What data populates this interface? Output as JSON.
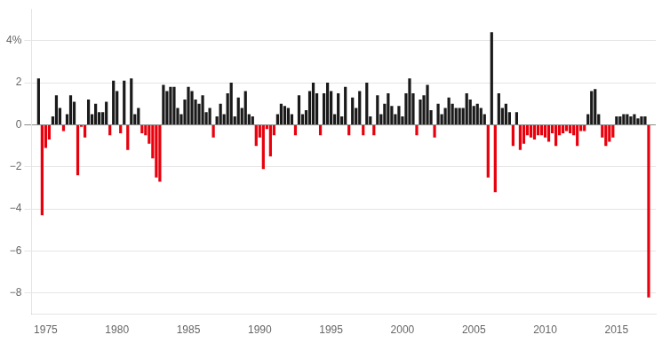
{
  "chart_data": {
    "type": "bar",
    "x": [
      1974.5,
      1974.75,
      1975,
      1975.25,
      1975.5,
      1975.75,
      1976,
      1976.25,
      1976.5,
      1976.75,
      1977,
      1977.25,
      1977.5,
      1977.75,
      1978,
      1978.25,
      1978.5,
      1978.75,
      1979,
      1979.25,
      1979.5,
      1979.75,
      1980,
      1980.25,
      1980.5,
      1980.75,
      1981,
      1981.25,
      1981.5,
      1981.75,
      1982,
      1982.25,
      1982.5,
      1982.75,
      1983,
      1983.25,
      1983.5,
      1983.75,
      1984,
      1984.25,
      1984.5,
      1984.75,
      1985,
      1985.25,
      1985.5,
      1985.75,
      1986,
      1986.25,
      1986.5,
      1986.75,
      1987,
      1987.25,
      1987.5,
      1987.75,
      1988,
      1988.25,
      1988.5,
      1988.75,
      1989,
      1989.25,
      1989.5,
      1989.75,
      1990,
      1990.25,
      1990.5,
      1990.75,
      1991,
      1991.25,
      1991.5,
      1991.75,
      1992,
      1992.25,
      1992.5,
      1992.75,
      1993,
      1993.25,
      1993.5,
      1993.75,
      1994,
      1994.25,
      1994.5,
      1994.75,
      1995,
      1995.25,
      1995.5,
      1995.75,
      1996,
      1996.25,
      1996.5,
      1996.75,
      1997,
      1997.25,
      1997.5,
      1997.75,
      1998,
      1998.25,
      1998.5,
      1998.75,
      1999,
      1999.25,
      1999.5,
      1999.75,
      2000,
      2000.25,
      2000.5,
      2000.75,
      2001,
      2001.25,
      2001.5,
      2001.75,
      2002,
      2002.25,
      2002.5,
      2002.75,
      2003,
      2003.25,
      2003.5,
      2003.75,
      2004,
      2004.25,
      2004.5,
      2004.75,
      2005,
      2005.25,
      2005.5,
      2005.75,
      2006,
      2006.25,
      2006.5,
      2006.75,
      2007,
      2007.25,
      2007.5,
      2007.75,
      2008,
      2008.25,
      2008.5,
      2008.75,
      2009,
      2009.25,
      2009.5,
      2009.75,
      2010,
      2010.25,
      2010.5,
      2010.75,
      2011,
      2011.25,
      2011.5,
      2011.75,
      2012,
      2012.25,
      2012.5,
      2012.75,
      2013,
      2013.25,
      2013.5,
      2013.75,
      2014,
      2014.25,
      2014.5,
      2014.75,
      2015,
      2015.25,
      2015.5,
      2015.75,
      2016,
      2016.25,
      2016.5,
      2016.75,
      2017,
      2017.25
    ],
    "values": [
      2.2,
      -4.3,
      -1.1,
      -0.7,
      0.4,
      1.4,
      0.8,
      -0.3,
      0.5,
      1.4,
      1.1,
      -2.4,
      -0.1,
      -0.6,
      1.2,
      0.5,
      1.0,
      0.6,
      0.6,
      1.1,
      -0.5,
      2.1,
      1.6,
      -0.4,
      2.1,
      -1.2,
      2.2,
      0.5,
      0.8,
      -0.4,
      -0.5,
      -0.9,
      -1.6,
      -2.5,
      -2.7,
      1.9,
      1.6,
      1.8,
      1.8,
      0.8,
      0.5,
      1.2,
      1.8,
      1.6,
      1.2,
      1.0,
      1.4,
      0.6,
      0.8,
      -0.6,
      0.4,
      1.0,
      0.5,
      1.5,
      2.0,
      0.4,
      1.3,
      0.8,
      1.6,
      0.5,
      0.4,
      -1.0,
      -0.6,
      -2.1,
      -0.2,
      -1.5,
      -0.5,
      0.5,
      1.0,
      0.9,
      0.8,
      0.5,
      -0.5,
      1.4,
      0.5,
      0.7,
      1.6,
      2.0,
      1.5,
      -0.5,
      1.5,
      2.0,
      1.6,
      0.5,
      1.5,
      0.4,
      1.8,
      -0.5,
      1.3,
      0.8,
      1.6,
      -0.5,
      2.0,
      0.4,
      -0.5,
      1.4,
      0.5,
      1.0,
      1.5,
      0.9,
      0.5,
      0.9,
      0.4,
      1.5,
      2.2,
      1.5,
      -0.5,
      1.2,
      1.4,
      1.9,
      0.7,
      -0.6,
      1.0,
      0.5,
      0.8,
      1.3,
      1.0,
      0.8,
      0.8,
      0.8,
      1.5,
      1.2,
      0.9,
      1.0,
      0.8,
      0.5,
      -2.5,
      4.4,
      -3.2,
      1.5,
      0.8,
      1.0,
      0.6,
      -1.0,
      0.6,
      -1.2,
      -0.9,
      -0.5,
      -0.6,
      -0.7,
      -0.5,
      -0.5,
      -0.6,
      -0.8,
      -0.4,
      -1.0,
      -0.5,
      -0.4,
      -0.3,
      -0.4,
      -0.5,
      -1.0,
      -0.3,
      -0.3,
      0.5,
      1.6,
      1.7,
      0.5,
      -0.6,
      -1.0,
      -0.8,
      -0.6,
      0.4,
      0.4,
      0.5,
      0.5,
      0.4,
      0.5,
      0.3,
      0.4,
      0.4,
      -8.2
    ],
    "colors": [
      "#1a1a1a",
      "#e8000d",
      "#e8000d",
      "#e8000d",
      "#1a1a1a",
      "#1a1a1a",
      "#1a1a1a",
      "#e8000d",
      "#1a1a1a",
      "#1a1a1a",
      "#1a1a1a",
      "#e8000d",
      "#e8000d",
      "#e8000d",
      "#1a1a1a",
      "#1a1a1a",
      "#1a1a1a",
      "#1a1a1a",
      "#1a1a1a",
      "#1a1a1a",
      "#e8000d",
      "#1a1a1a",
      "#1a1a1a",
      "#e8000d",
      "#1a1a1a",
      "#e8000d",
      "#1a1a1a",
      "#1a1a1a",
      "#1a1a1a",
      "#e8000d",
      "#e8000d",
      "#e8000d",
      "#e8000d",
      "#e8000d",
      "#e8000d",
      "#1a1a1a",
      "#1a1a1a",
      "#1a1a1a",
      "#1a1a1a",
      "#1a1a1a",
      "#1a1a1a",
      "#1a1a1a",
      "#1a1a1a",
      "#1a1a1a",
      "#1a1a1a",
      "#1a1a1a",
      "#1a1a1a",
      "#1a1a1a",
      "#1a1a1a",
      "#e8000d",
      "#1a1a1a",
      "#1a1a1a",
      "#1a1a1a",
      "#1a1a1a",
      "#1a1a1a",
      "#1a1a1a",
      "#1a1a1a",
      "#1a1a1a",
      "#1a1a1a",
      "#1a1a1a",
      "#1a1a1a",
      "#e8000d",
      "#e8000d",
      "#e8000d",
      "#e8000d",
      "#e8000d",
      "#e8000d",
      "#1a1a1a",
      "#1a1a1a",
      "#1a1a1a",
      "#1a1a1a",
      "#1a1a1a",
      "#e8000d",
      "#1a1a1a",
      "#1a1a1a",
      "#1a1a1a",
      "#1a1a1a",
      "#1a1a1a",
      "#1a1a1a",
      "#e8000d",
      "#1a1a1a",
      "#1a1a1a",
      "#1a1a1a",
      "#1a1a1a",
      "#1a1a1a",
      "#1a1a1a",
      "#1a1a1a",
      "#e8000d",
      "#1a1a1a",
      "#1a1a1a",
      "#1a1a1a",
      "#e8000d",
      "#1a1a1a",
      "#1a1a1a",
      "#e8000d",
      "#1a1a1a",
      "#1a1a1a",
      "#1a1a1a",
      "#1a1a1a",
      "#1a1a1a",
      "#1a1a1a",
      "#1a1a1a",
      "#1a1a1a",
      "#1a1a1a",
      "#1a1a1a",
      "#1a1a1a",
      "#e8000d",
      "#1a1a1a",
      "#1a1a1a",
      "#1a1a1a",
      "#1a1a1a",
      "#e8000d",
      "#1a1a1a",
      "#1a1a1a",
      "#1a1a1a",
      "#1a1a1a",
      "#1a1a1a",
      "#1a1a1a",
      "#1a1a1a",
      "#1a1a1a",
      "#1a1a1a",
      "#1a1a1a",
      "#1a1a1a",
      "#1a1a1a",
      "#1a1a1a",
      "#1a1a1a",
      "#e8000d",
      "#1a1a1a",
      "#e8000d",
      "#1a1a1a",
      "#1a1a1a",
      "#1a1a1a",
      "#1a1a1a",
      "#e8000d",
      "#1a1a1a",
      "#e8000d",
      "#e8000d",
      "#e8000d",
      "#e8000d",
      "#e8000d",
      "#e8000d",
      "#e8000d",
      "#e8000d",
      "#e8000d",
      "#e8000d",
      "#e8000d",
      "#e8000d",
      "#e8000d",
      "#e8000d",
      "#e8000d",
      "#e8000d",
      "#e8000d",
      "#e8000d",
      "#e8000d",
      "#1a1a1a",
      "#1a1a1a",
      "#1a1a1a",
      "#1a1a1a",
      "#e8000d",
      "#e8000d",
      "#e8000d",
      "#e8000d",
      "#1a1a1a",
      "#1a1a1a",
      "#1a1a1a",
      "#1a1a1a",
      "#1a1a1a",
      "#1a1a1a",
      "#1a1a1a",
      "#1a1a1a",
      "#1a1a1a",
      "#e8000d"
    ],
    "xlim": [
      1974.0,
      2017.75
    ],
    "xticks": [
      1975,
      1980,
      1985,
      1990,
      1995,
      2000,
      2005,
      2010,
      2015
    ],
    "ylim": [
      -9,
      5.5
    ],
    "yticks": [
      {
        "value": 4,
        "label": "4%"
      },
      2,
      0,
      {
        "value": -2,
        "label": "−2"
      },
      {
        "value": -4,
        "label": "−4"
      },
      {
        "value": -6,
        "label": "−6"
      },
      {
        "value": -8,
        "label": "−8"
      }
    ],
    "grid": true
  }
}
